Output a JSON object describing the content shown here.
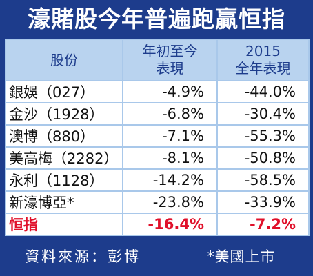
{
  "title": "濠賭股今年普遍跑贏恒指",
  "table": {
    "header": [
      [
        "股份"
      ],
      [
        "年初至今",
        "表現"
      ],
      [
        "2015",
        "全年表現"
      ]
    ],
    "rows": [
      [
        "銀娛（027）",
        "-4.9%",
        "-44.0%"
      ],
      [
        "金沙（1928）",
        "-6.8%",
        "-30.4%"
      ],
      [
        "澳博（880）",
        "-7.1%",
        "-55.3%"
      ],
      [
        "美高梅（2282）",
        "-8.1%",
        "-50.8%"
      ],
      [
        "永利（1128）",
        "-14.2%",
        "-58.5%"
      ],
      [
        "新濠博亞*",
        "-23.8%",
        "-33.9%"
      ]
    ],
    "index_row": [
      "恒指",
      "-16.4%",
      "-7.2%"
    ]
  },
  "footer": {
    "source": "資料來源：彭博",
    "note": "*美國上市"
  }
}
